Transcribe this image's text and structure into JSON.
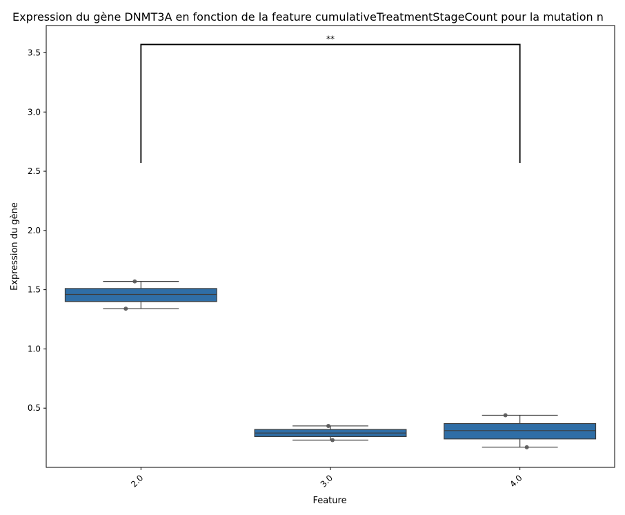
{
  "chart_data": {
    "type": "box",
    "title": "Expression du gène DNMT3A en fonction de la feature cumulativeTreatmentStageCount pour la mutation n",
    "xlabel": "Feature",
    "ylabel": "Expression du gène",
    "ylim": [
      0.0,
      3.73
    ],
    "yticks": [
      0.5,
      1.0,
      1.5,
      2.0,
      2.5,
      3.0,
      3.5
    ],
    "ytick_labels": [
      "0.5",
      "1.0",
      "1.5",
      "2.0",
      "2.5",
      "3.0",
      "3.5"
    ],
    "categories": [
      "2.0",
      "3.0",
      "4.0"
    ],
    "box_color": "#2f6ea6",
    "boxes": [
      {
        "category": "2.0",
        "whisker_low": 1.34,
        "q1": 1.4,
        "median": 1.46,
        "q3": 1.51,
        "whisker_high": 1.57,
        "points": [
          1.57,
          1.34
        ]
      },
      {
        "category": "3.0",
        "whisker_low": 0.23,
        "q1": 0.26,
        "median": 0.29,
        "q3": 0.32,
        "whisker_high": 0.35,
        "points": [
          0.35,
          0.23
        ]
      },
      {
        "category": "4.0",
        "whisker_low": 0.17,
        "q1": 0.24,
        "median": 0.31,
        "q3": 0.37,
        "whisker_high": 0.44,
        "points": [
          0.44,
          0.17
        ]
      }
    ],
    "annotations": [
      {
        "from": "2.0",
        "to": "4.0",
        "y_bottom": 2.57,
        "y_top": 3.57,
        "text": "**"
      }
    ],
    "grid": false
  }
}
